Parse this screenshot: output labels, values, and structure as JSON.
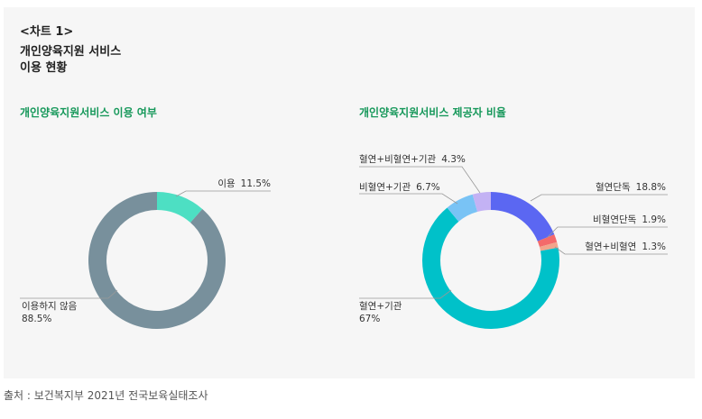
{
  "header": {
    "chart_no": "<차트 1>",
    "title_line1": "개인양육지원 서비스",
    "title_line2": "이용 현황"
  },
  "source": "출처 : 보건복지부 2021년 전국보육실태조사",
  "chart_data": [
    {
      "type": "pie",
      "title": "개인양육지원서비스 이용 여부",
      "slices": [
        {
          "label": "이용",
          "value_text": "11.5%",
          "value": 11.5,
          "color": "#4ddfc3"
        },
        {
          "label": "이용하지 않음",
          "value_text": "88.5%",
          "value": 88.5,
          "color": "#78909c"
        }
      ]
    },
    {
      "type": "pie",
      "title": "개인양육지원서비스 제공자 비율",
      "slices": [
        {
          "label": "혈연단독",
          "value_text": "18.8%",
          "value": 18.8,
          "color": "#5b67f2"
        },
        {
          "label": "비혈연단독",
          "value_text": "1.9%",
          "value": 1.9,
          "color": "#f46a6a"
        },
        {
          "label": "혈연+비혈연",
          "value_text": "1.3%",
          "value": 1.3,
          "color": "#f2a48b"
        },
        {
          "label": "혈연+기관",
          "value_text": "67%",
          "value": 67,
          "color": "#00c1c9"
        },
        {
          "label": "비혈연+기관",
          "value_text": "6.7%",
          "value": 6.7,
          "color": "#79c3f5"
        },
        {
          "label": "혈연+비혈연+기관",
          "value_text": "4.3%",
          "value": 4.3,
          "color": "#c3b2f4"
        }
      ]
    }
  ]
}
